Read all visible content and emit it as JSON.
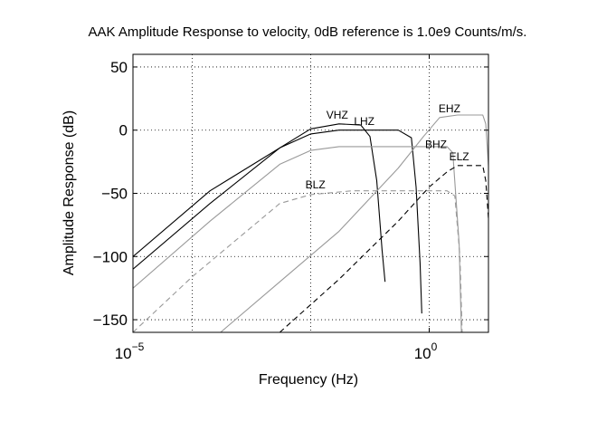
{
  "chart_data": {
    "type": "line",
    "title": "AAK Amplitude Response to velocity, 0dB reference is 1.0e9 Counts/m/s.",
    "xlabel": "Frequency (Hz)",
    "ylabel": "Amplitude Response (dB)",
    "xscale": "log",
    "xlim": [
      1e-05,
      10
    ],
    "ylim": [
      -160,
      60
    ],
    "xticks": [
      {
        "value": 1e-05,
        "base": "10",
        "exp": "−5"
      },
      {
        "value": 1,
        "base": "10",
        "exp": "0"
      }
    ],
    "yticks": [
      {
        "value": 50,
        "label": "50"
      },
      {
        "value": 0,
        "label": "0"
      },
      {
        "value": -50,
        "label": "−50"
      },
      {
        "value": -100,
        "label": "−100"
      },
      {
        "value": -150,
        "label": "−150"
      }
    ],
    "xgrid": [
      0.0001,
      0.01,
      1
    ],
    "ygrid": [
      50,
      0,
      -50,
      -100,
      -150
    ],
    "grid": true,
    "series": [
      {
        "name": "VHZ",
        "color": "#000000",
        "dash": "solid",
        "label_at": [
          0.028,
          9
        ],
        "points": [
          [
            1e-05,
            -100
          ],
          [
            0.0002,
            -48
          ],
          [
            0.01,
            1
          ],
          [
            0.03,
            5
          ],
          [
            0.07,
            4
          ],
          [
            0.1,
            -5
          ],
          [
            0.13,
            -40
          ],
          [
            0.16,
            -95
          ],
          [
            0.18,
            -120
          ]
        ]
      },
      {
        "name": "LHZ",
        "color": "#000000",
        "dash": "solid",
        "label_at": [
          0.08,
          4
        ],
        "points": [
          [
            1e-05,
            -110
          ],
          [
            0.0002,
            -58
          ],
          [
            0.003,
            -14
          ],
          [
            0.01,
            -3
          ],
          [
            0.03,
            0
          ],
          [
            0.3,
            0
          ],
          [
            0.5,
            -6
          ],
          [
            0.6,
            -45
          ],
          [
            0.7,
            -105
          ],
          [
            0.75,
            -145
          ]
        ]
      },
      {
        "name": "BHZ",
        "color": "#999999",
        "dash": "solid",
        "label_at": [
          1.3,
          -14
        ],
        "points": [
          [
            1e-05,
            -125
          ],
          [
            0.0002,
            -72
          ],
          [
            0.003,
            -27
          ],
          [
            0.01,
            -16
          ],
          [
            0.03,
            -13
          ],
          [
            2,
            -13
          ],
          [
            2.5,
            -18
          ],
          [
            3.2,
            -90
          ],
          [
            3.5,
            -160
          ]
        ]
      },
      {
        "name": "EHZ",
        "color": "#999999",
        "dash": "solid",
        "label_at": [
          2.2,
          14
        ],
        "points": [
          [
            0.0003,
            -160
          ],
          [
            0.003,
            -120
          ],
          [
            0.03,
            -80
          ],
          [
            0.3,
            -30
          ],
          [
            0.8,
            -5
          ],
          [
            1.5,
            10
          ],
          [
            3,
            12
          ],
          [
            8,
            12
          ],
          [
            9,
            5
          ],
          [
            10,
            -28
          ]
        ]
      },
      {
        "name": "BLZ",
        "color": "#999999",
        "dash": "dashed",
        "label_at": [
          0.012,
          -46
        ],
        "points": [
          [
            1e-05,
            -160
          ],
          [
            0.0001,
            -116
          ],
          [
            0.003,
            -58
          ],
          [
            0.01,
            -51
          ],
          [
            0.05,
            -48
          ],
          [
            2,
            -48
          ],
          [
            2.7,
            -52
          ],
          [
            3.3,
            -100
          ],
          [
            3.6,
            -160
          ]
        ]
      },
      {
        "name": "ELZ",
        "color": "#000000",
        "dash": "dashed",
        "label_at": [
          3.2,
          -24
        ],
        "points": [
          [
            0.003,
            -160
          ],
          [
            0.03,
            -118
          ],
          [
            0.3,
            -72
          ],
          [
            1,
            -45
          ],
          [
            2,
            -33
          ],
          [
            3,
            -28
          ],
          [
            8,
            -28
          ],
          [
            9,
            -40
          ],
          [
            10,
            -70
          ]
        ]
      }
    ]
  }
}
